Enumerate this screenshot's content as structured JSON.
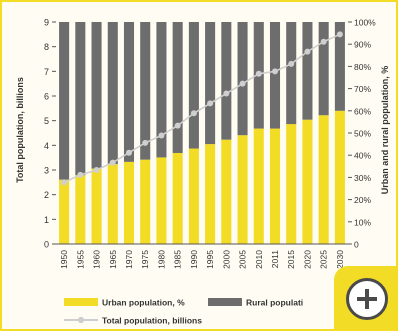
{
  "chart_data": {
    "type": "bar",
    "stacked": true,
    "categories": [
      "1950",
      "1955",
      "1960",
      "1965",
      "1970",
      "1975",
      "1980",
      "1985",
      "1990",
      "1995",
      "2000",
      "2005",
      "2010",
      "2011",
      "2015",
      "2020",
      "2025",
      "2030"
    ],
    "left_axis": {
      "label": "Total population, billions",
      "range": [
        0,
        9
      ],
      "ticks": [
        "0",
        "1",
        "2",
        "3",
        "4",
        "5",
        "6",
        "7",
        "8",
        "9"
      ]
    },
    "right_axis": {
      "label": "Urban and rural population, %",
      "range": [
        0,
        100
      ],
      "ticks": [
        "0",
        "10%",
        "20%",
        "30%",
        "40%",
        "50%",
        "60%",
        "70%",
        "80%",
        "90%",
        "100%"
      ]
    },
    "series": [
      {
        "name": "Urban population, %",
        "axis": "right",
        "color": "#f2dc25",
        "values": [
          29,
          31,
          34,
          36,
          37,
          38,
          39,
          41,
          43,
          45,
          47,
          49,
          52,
          52,
          54,
          56,
          58,
          60
        ]
      },
      {
        "name": "Rural population",
        "axis": "right",
        "color": "#6d6d6d",
        "values": [
          71,
          69,
          66,
          64,
          63,
          62,
          61,
          59,
          57,
          55,
          53,
          51,
          48,
          48,
          46,
          44,
          42,
          40
        ]
      },
      {
        "name": "Total population, billions",
        "axis": "left",
        "type": "line",
        "color": "#cfcfcf",
        "values": [
          2.5,
          2.8,
          3.0,
          3.3,
          3.7,
          4.1,
          4.4,
          4.8,
          5.3,
          5.7,
          6.1,
          6.5,
          6.9,
          7.0,
          7.3,
          7.8,
          8.2,
          8.5
        ]
      }
    ],
    "legend": {
      "placement": "bottom",
      "urban_label": "Urban population, %",
      "rural_label": "Rural populati",
      "total_label": "Total population, billions"
    }
  },
  "colors": {
    "urban": "#f2dc25",
    "rural": "#6d6d6d",
    "total": "#cfcfcf",
    "frame": "#f2dc25"
  },
  "overlay": {
    "icon": "zoom-plus-icon"
  }
}
